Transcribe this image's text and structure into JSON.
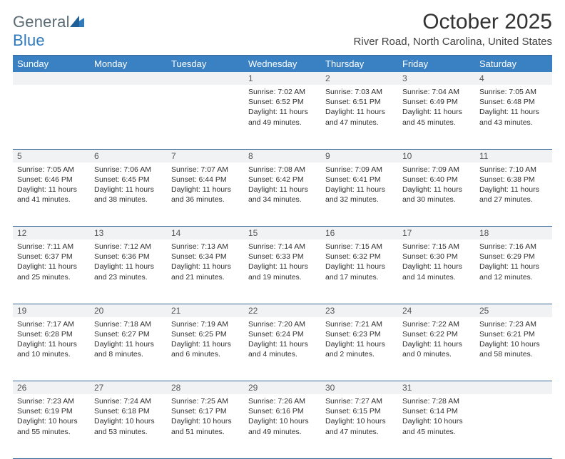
{
  "brand": {
    "name_a": "General",
    "name_b": "Blue"
  },
  "title": "October 2025",
  "location": "River Road, North Carolina, United States",
  "colors": {
    "header_bg": "#3a81c4",
    "header_text": "#ffffff",
    "daynum_bg": "#f0f2f4",
    "rule": "#3a6a9a",
    "brand_gray": "#5a6a72",
    "brand_blue": "#2f79bd"
  },
  "font": {
    "title_size": 30,
    "location_size": 15,
    "header_size": 13,
    "daynum_size": 12,
    "body_size": 10.5
  },
  "day_labels": [
    "Sunday",
    "Monday",
    "Tuesday",
    "Wednesday",
    "Thursday",
    "Friday",
    "Saturday"
  ],
  "weeks": [
    [
      null,
      null,
      null,
      {
        "n": "1",
        "sunrise": "Sunrise: 7:02 AM",
        "sunset": "Sunset: 6:52 PM",
        "day": "Daylight: 11 hours and 49 minutes."
      },
      {
        "n": "2",
        "sunrise": "Sunrise: 7:03 AM",
        "sunset": "Sunset: 6:51 PM",
        "day": "Daylight: 11 hours and 47 minutes."
      },
      {
        "n": "3",
        "sunrise": "Sunrise: 7:04 AM",
        "sunset": "Sunset: 6:49 PM",
        "day": "Daylight: 11 hours and 45 minutes."
      },
      {
        "n": "4",
        "sunrise": "Sunrise: 7:05 AM",
        "sunset": "Sunset: 6:48 PM",
        "day": "Daylight: 11 hours and 43 minutes."
      }
    ],
    [
      {
        "n": "5",
        "sunrise": "Sunrise: 7:05 AM",
        "sunset": "Sunset: 6:46 PM",
        "day": "Daylight: 11 hours and 41 minutes."
      },
      {
        "n": "6",
        "sunrise": "Sunrise: 7:06 AM",
        "sunset": "Sunset: 6:45 PM",
        "day": "Daylight: 11 hours and 38 minutes."
      },
      {
        "n": "7",
        "sunrise": "Sunrise: 7:07 AM",
        "sunset": "Sunset: 6:44 PM",
        "day": "Daylight: 11 hours and 36 minutes."
      },
      {
        "n": "8",
        "sunrise": "Sunrise: 7:08 AM",
        "sunset": "Sunset: 6:42 PM",
        "day": "Daylight: 11 hours and 34 minutes."
      },
      {
        "n": "9",
        "sunrise": "Sunrise: 7:09 AM",
        "sunset": "Sunset: 6:41 PM",
        "day": "Daylight: 11 hours and 32 minutes."
      },
      {
        "n": "10",
        "sunrise": "Sunrise: 7:09 AM",
        "sunset": "Sunset: 6:40 PM",
        "day": "Daylight: 11 hours and 30 minutes."
      },
      {
        "n": "11",
        "sunrise": "Sunrise: 7:10 AM",
        "sunset": "Sunset: 6:38 PM",
        "day": "Daylight: 11 hours and 27 minutes."
      }
    ],
    [
      {
        "n": "12",
        "sunrise": "Sunrise: 7:11 AM",
        "sunset": "Sunset: 6:37 PM",
        "day": "Daylight: 11 hours and 25 minutes."
      },
      {
        "n": "13",
        "sunrise": "Sunrise: 7:12 AM",
        "sunset": "Sunset: 6:36 PM",
        "day": "Daylight: 11 hours and 23 minutes."
      },
      {
        "n": "14",
        "sunrise": "Sunrise: 7:13 AM",
        "sunset": "Sunset: 6:34 PM",
        "day": "Daylight: 11 hours and 21 minutes."
      },
      {
        "n": "15",
        "sunrise": "Sunrise: 7:14 AM",
        "sunset": "Sunset: 6:33 PM",
        "day": "Daylight: 11 hours and 19 minutes."
      },
      {
        "n": "16",
        "sunrise": "Sunrise: 7:15 AM",
        "sunset": "Sunset: 6:32 PM",
        "day": "Daylight: 11 hours and 17 minutes."
      },
      {
        "n": "17",
        "sunrise": "Sunrise: 7:15 AM",
        "sunset": "Sunset: 6:30 PM",
        "day": "Daylight: 11 hours and 14 minutes."
      },
      {
        "n": "18",
        "sunrise": "Sunrise: 7:16 AM",
        "sunset": "Sunset: 6:29 PM",
        "day": "Daylight: 11 hours and 12 minutes."
      }
    ],
    [
      {
        "n": "19",
        "sunrise": "Sunrise: 7:17 AM",
        "sunset": "Sunset: 6:28 PM",
        "day": "Daylight: 11 hours and 10 minutes."
      },
      {
        "n": "20",
        "sunrise": "Sunrise: 7:18 AM",
        "sunset": "Sunset: 6:27 PM",
        "day": "Daylight: 11 hours and 8 minutes."
      },
      {
        "n": "21",
        "sunrise": "Sunrise: 7:19 AM",
        "sunset": "Sunset: 6:25 PM",
        "day": "Daylight: 11 hours and 6 minutes."
      },
      {
        "n": "22",
        "sunrise": "Sunrise: 7:20 AM",
        "sunset": "Sunset: 6:24 PM",
        "day": "Daylight: 11 hours and 4 minutes."
      },
      {
        "n": "23",
        "sunrise": "Sunrise: 7:21 AM",
        "sunset": "Sunset: 6:23 PM",
        "day": "Daylight: 11 hours and 2 minutes."
      },
      {
        "n": "24",
        "sunrise": "Sunrise: 7:22 AM",
        "sunset": "Sunset: 6:22 PM",
        "day": "Daylight: 11 hours and 0 minutes."
      },
      {
        "n": "25",
        "sunrise": "Sunrise: 7:23 AM",
        "sunset": "Sunset: 6:21 PM",
        "day": "Daylight: 10 hours and 58 minutes."
      }
    ],
    [
      {
        "n": "26",
        "sunrise": "Sunrise: 7:23 AM",
        "sunset": "Sunset: 6:19 PM",
        "day": "Daylight: 10 hours and 55 minutes."
      },
      {
        "n": "27",
        "sunrise": "Sunrise: 7:24 AM",
        "sunset": "Sunset: 6:18 PM",
        "day": "Daylight: 10 hours and 53 minutes."
      },
      {
        "n": "28",
        "sunrise": "Sunrise: 7:25 AM",
        "sunset": "Sunset: 6:17 PM",
        "day": "Daylight: 10 hours and 51 minutes."
      },
      {
        "n": "29",
        "sunrise": "Sunrise: 7:26 AM",
        "sunset": "Sunset: 6:16 PM",
        "day": "Daylight: 10 hours and 49 minutes."
      },
      {
        "n": "30",
        "sunrise": "Sunrise: 7:27 AM",
        "sunset": "Sunset: 6:15 PM",
        "day": "Daylight: 10 hours and 47 minutes."
      },
      {
        "n": "31",
        "sunrise": "Sunrise: 7:28 AM",
        "sunset": "Sunset: 6:14 PM",
        "day": "Daylight: 10 hours and 45 minutes."
      },
      null
    ]
  ]
}
